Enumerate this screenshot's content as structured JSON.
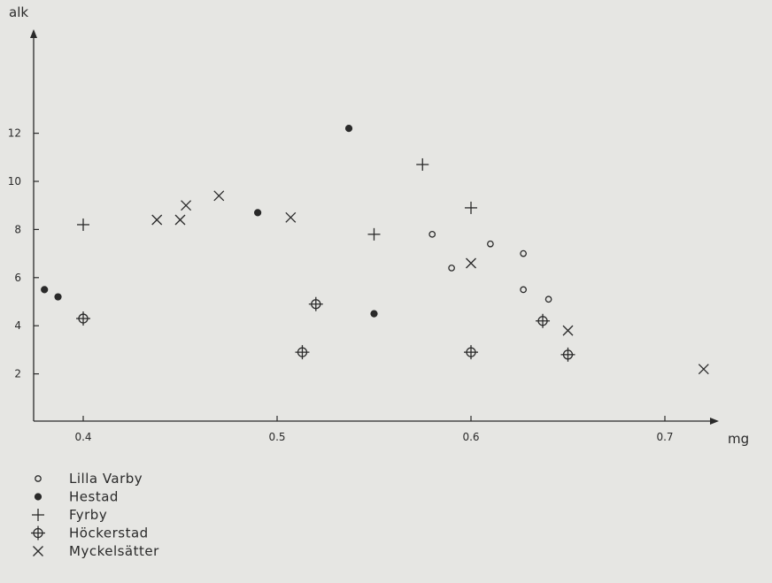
{
  "chart_data": {
    "type": "scatter",
    "xlabel": "mg",
    "ylabel": "alk",
    "xlim": [
      0.375,
      0.725
    ],
    "ylim": [
      0,
      13
    ],
    "x_ticks": [
      "0.4",
      "0.5",
      "0.6",
      "0.7"
    ],
    "x_tick_values": [
      0.4,
      0.5,
      0.6,
      0.7
    ],
    "y_ticks": [
      "2",
      "4",
      "6",
      "8",
      "10",
      "12"
    ],
    "y_tick_values": [
      2,
      4,
      6,
      8,
      10,
      12
    ],
    "grid": false,
    "legend_position": "bottom-left",
    "series": [
      {
        "name": "Lilla Varby",
        "marker": "open-circle",
        "points": [
          [
            0.58,
            7.8
          ],
          [
            0.59,
            6.4
          ],
          [
            0.61,
            7.4
          ],
          [
            0.627,
            7.0
          ],
          [
            0.627,
            5.5
          ],
          [
            0.64,
            5.1
          ]
        ]
      },
      {
        "name": "Hestad",
        "marker": "filled-circle",
        "points": [
          [
            0.38,
            5.5
          ],
          [
            0.387,
            5.2
          ],
          [
            0.49,
            8.7
          ],
          [
            0.537,
            12.2
          ],
          [
            0.55,
            4.5
          ]
        ]
      },
      {
        "name": "Fyrby",
        "marker": "plus",
        "points": [
          [
            0.4,
            8.2
          ],
          [
            0.55,
            7.8
          ],
          [
            0.575,
            10.7
          ],
          [
            0.6,
            8.9
          ]
        ]
      },
      {
        "name": "Höckerstad",
        "marker": "circle-plus",
        "points": [
          [
            0.4,
            4.3
          ],
          [
            0.513,
            2.9
          ],
          [
            0.52,
            4.9
          ],
          [
            0.6,
            2.9
          ],
          [
            0.637,
            4.2
          ],
          [
            0.65,
            2.8
          ]
        ]
      },
      {
        "name": "Myckelsätter",
        "marker": "cross",
        "points": [
          [
            0.438,
            8.4
          ],
          [
            0.45,
            8.4
          ],
          [
            0.453,
            9.0
          ],
          [
            0.47,
            9.4
          ],
          [
            0.507,
            8.5
          ],
          [
            0.6,
            6.6
          ],
          [
            0.65,
            3.8
          ],
          [
            0.72,
            2.2
          ]
        ]
      }
    ]
  }
}
